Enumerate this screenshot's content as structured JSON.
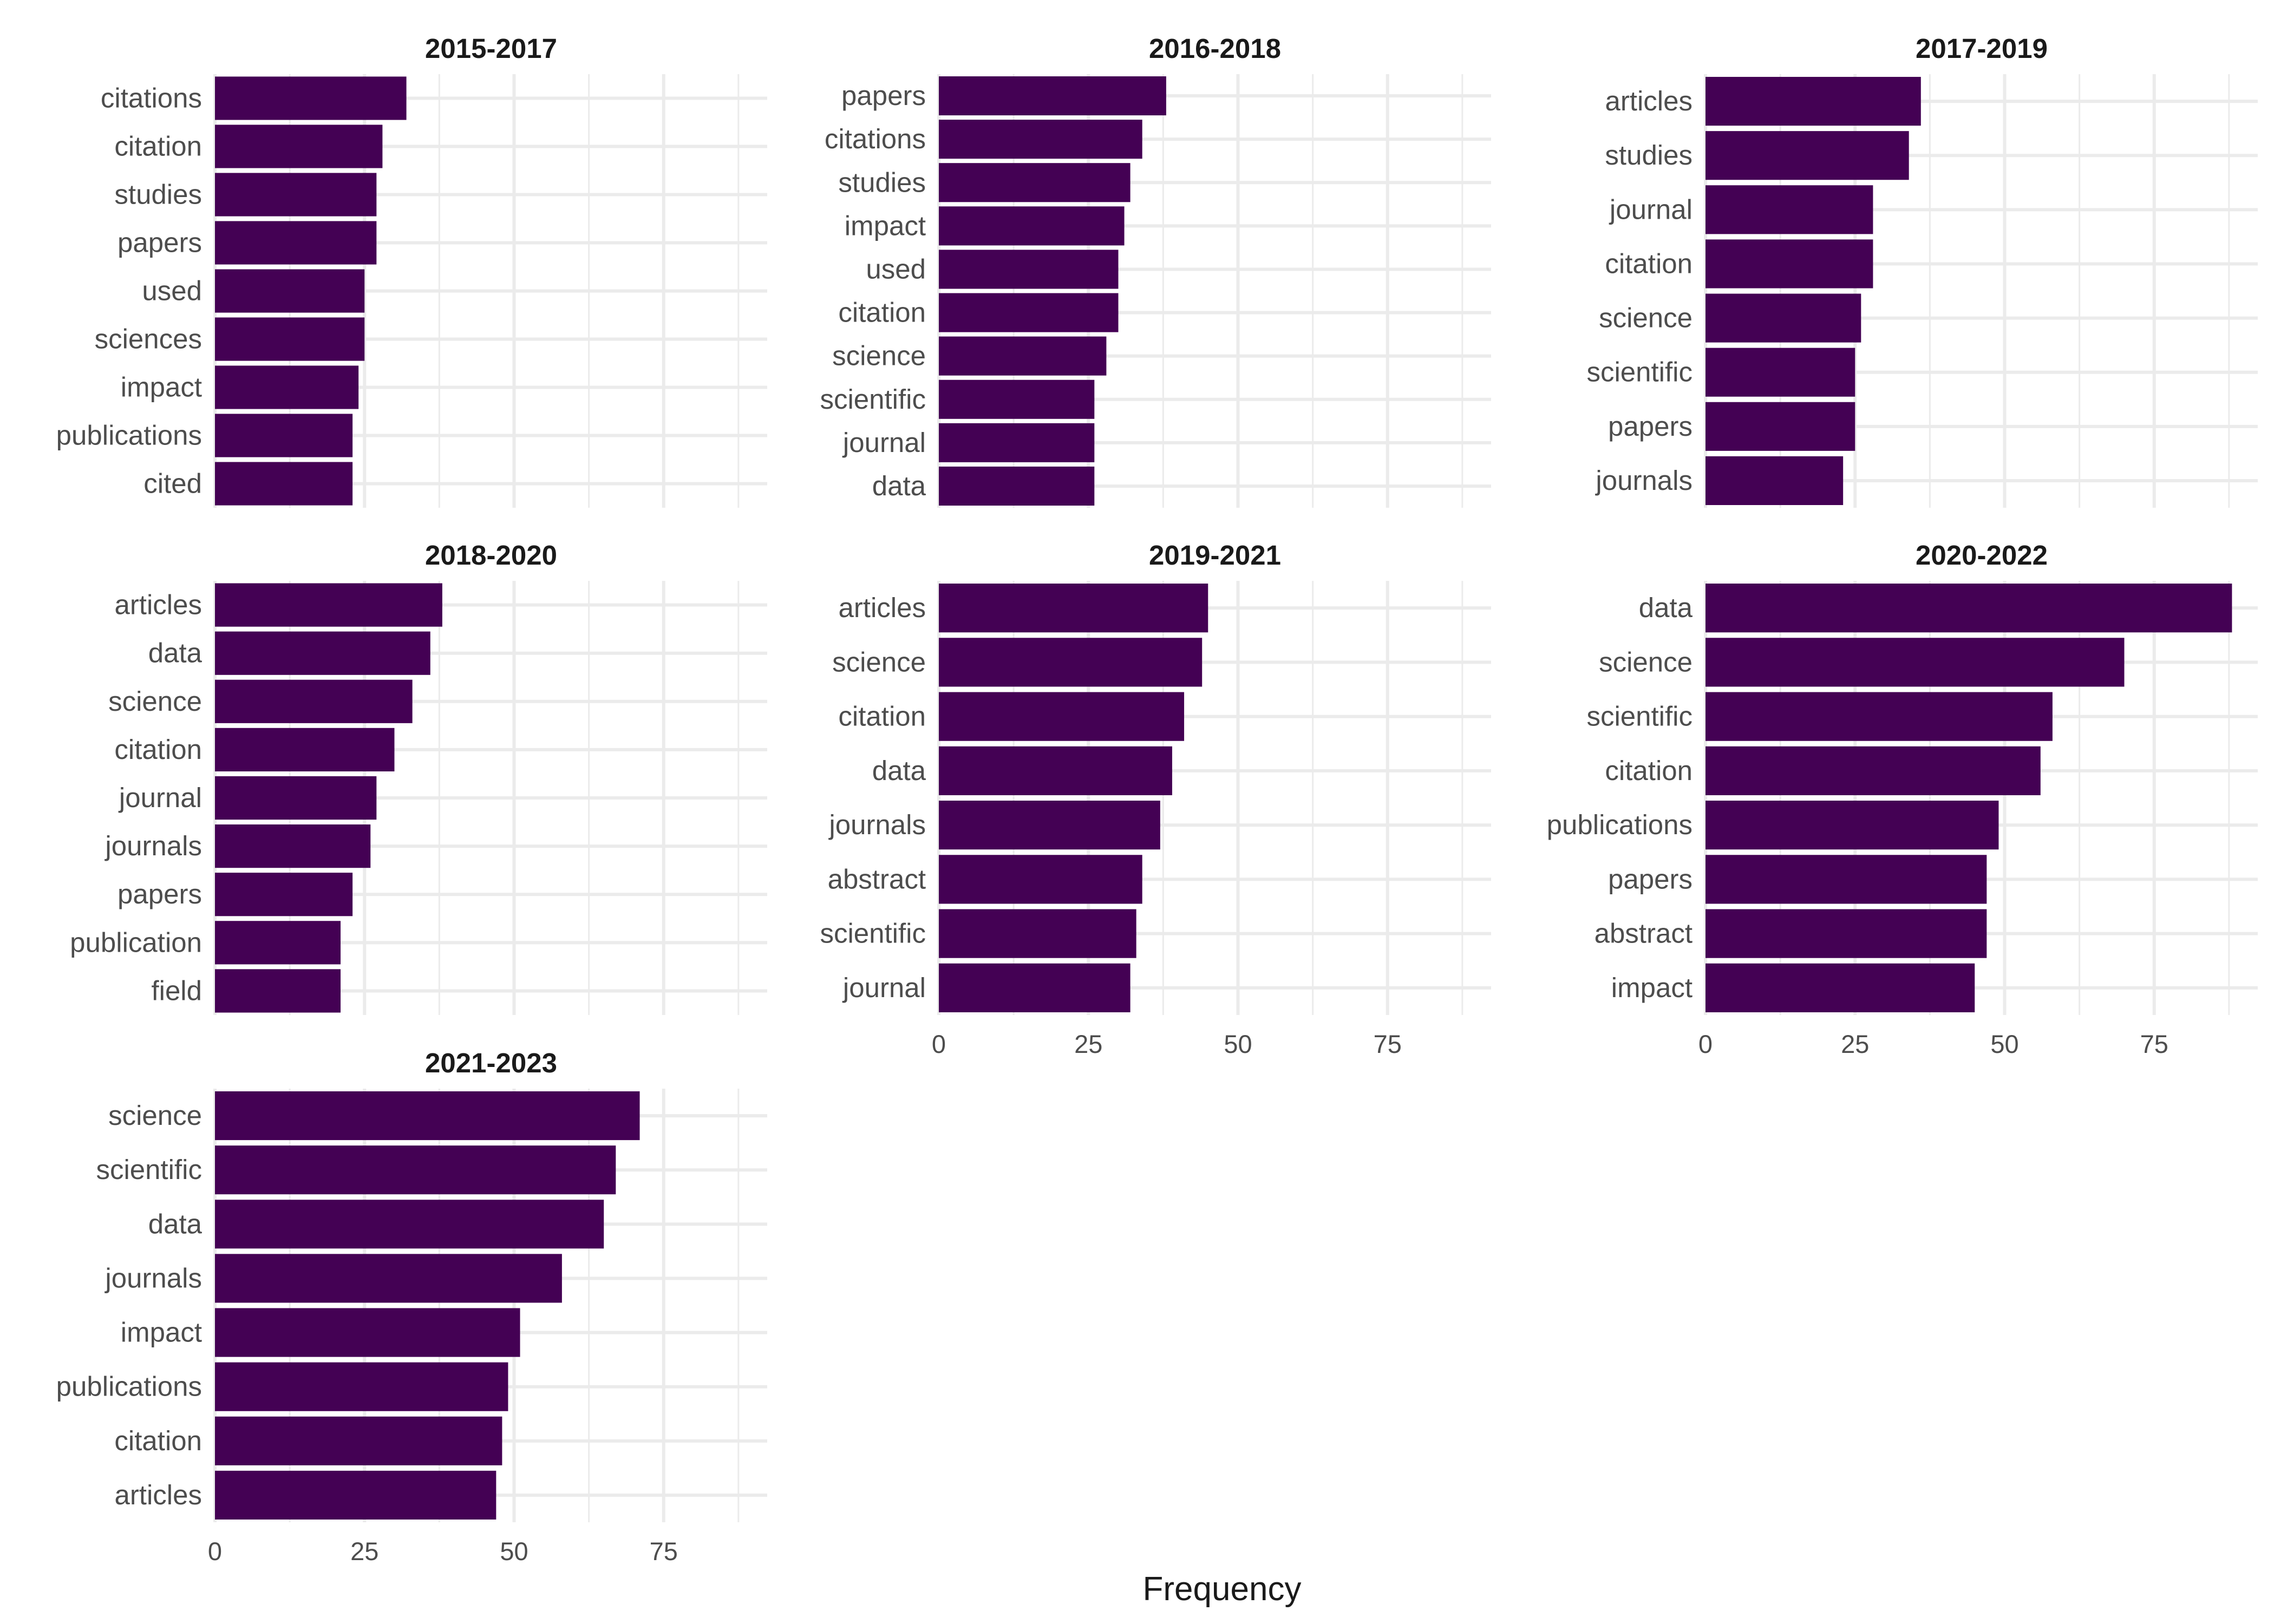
{
  "chart_data": {
    "type": "bar",
    "orientation": "horizontal",
    "xlabel": "Frequency",
    "ylabel": "",
    "xlim": [
      0,
      92
    ],
    "x_ticks": [
      0,
      25,
      50,
      75
    ],
    "bar_color": "#440154",
    "grid": true,
    "panels": [
      {
        "title": "2015-2017",
        "categories": [
          "citations",
          "citation",
          "studies",
          "papers",
          "used",
          "sciences",
          "impact",
          "publications",
          "cited"
        ],
        "values": [
          32,
          28,
          27,
          27,
          25,
          25,
          24,
          23,
          23
        ]
      },
      {
        "title": "2016-2018",
        "categories": [
          "papers",
          "citations",
          "studies",
          "impact",
          "used",
          "citation",
          "science",
          "scientific",
          "journal",
          "data"
        ],
        "values": [
          38,
          34,
          32,
          31,
          30,
          30,
          28,
          26,
          26,
          26
        ]
      },
      {
        "title": "2017-2019",
        "categories": [
          "articles",
          "studies",
          "journal",
          "citation",
          "science",
          "scientific",
          "papers",
          "journals"
        ],
        "values": [
          36,
          34,
          28,
          28,
          26,
          25,
          25,
          23
        ]
      },
      {
        "title": "2018-2020",
        "categories": [
          "articles",
          "data",
          "science",
          "citation",
          "journal",
          "journals",
          "papers",
          "publication",
          "field"
        ],
        "values": [
          38,
          36,
          33,
          30,
          27,
          26,
          23,
          21,
          21
        ]
      },
      {
        "title": "2019-2021",
        "categories": [
          "articles",
          "science",
          "citation",
          "data",
          "journals",
          "abstract",
          "scientific",
          "journal"
        ],
        "values": [
          45,
          44,
          41,
          39,
          37,
          34,
          33,
          32
        ]
      },
      {
        "title": "2020-2022",
        "categories": [
          "data",
          "science",
          "scientific",
          "citation",
          "publications",
          "papers",
          "abstract",
          "impact"
        ],
        "values": [
          88,
          70,
          58,
          56,
          49,
          47,
          47,
          45
        ]
      },
      {
        "title": "2021-2023",
        "categories": [
          "science",
          "scientific",
          "data",
          "journals",
          "impact",
          "publications",
          "citation",
          "articles"
        ],
        "values": [
          71,
          67,
          65,
          58,
          51,
          49,
          48,
          47
        ]
      }
    ]
  }
}
